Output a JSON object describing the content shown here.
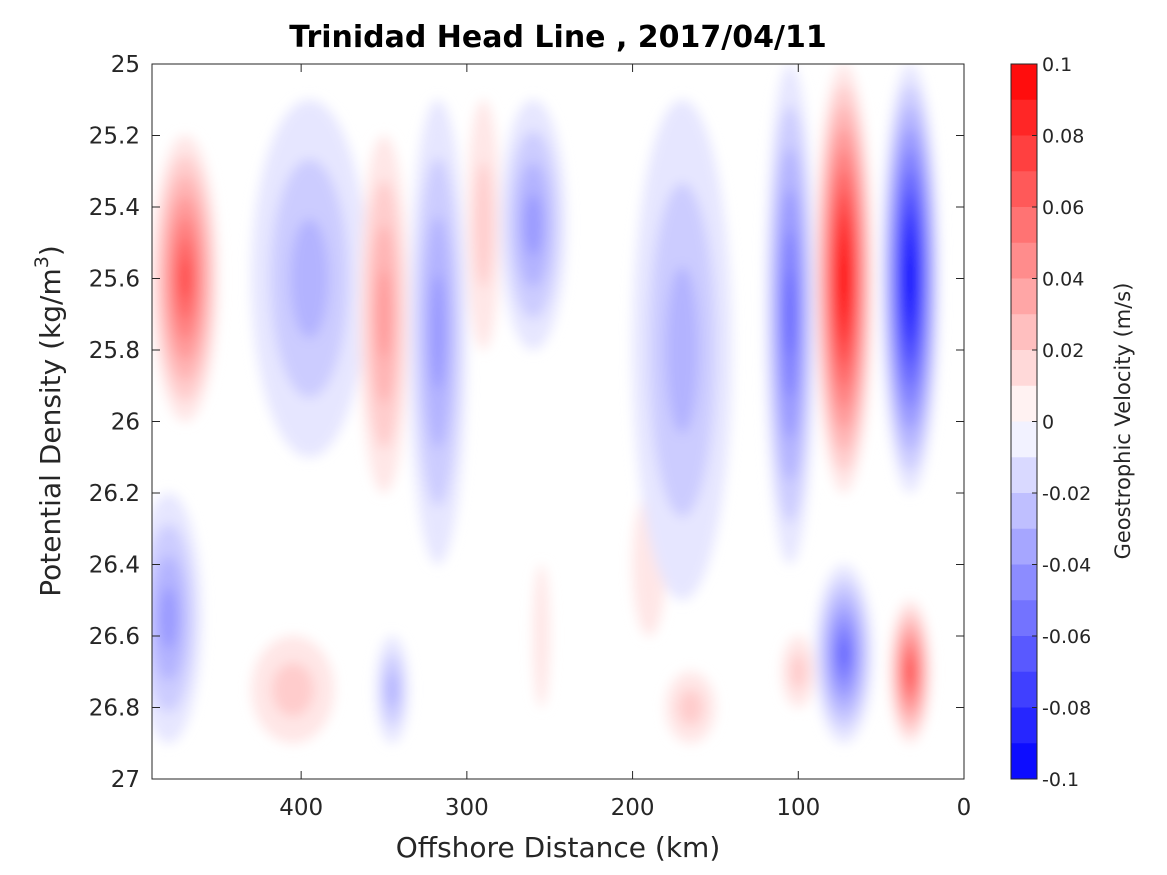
{
  "chart_data": {
    "type": "contour",
    "title": "Trinidad Head Line , 2017/04/11",
    "xlabel": "Offshore Distance (km)",
    "ylabel": "Potential Density (kg/m³)",
    "ylabel_parts": {
      "text": "Potential Density (kg/m",
      "sup": "3",
      "close": ")"
    },
    "xlim": [
      490,
      0
    ],
    "ylim": [
      25,
      27
    ],
    "x_reversed": true,
    "y_reversed": true,
    "xticks": [
      400,
      300,
      200,
      100,
      0
    ],
    "xtick_labels": [
      "400",
      "300",
      "200",
      "100",
      "0"
    ],
    "yticks": [
      25,
      25.2,
      25.4,
      25.6,
      25.8,
      26,
      26.2,
      26.4,
      26.6,
      26.8,
      27
    ],
    "ytick_labels": [
      "25",
      "25.2",
      "25.4",
      "25.6",
      "25.8",
      "26",
      "26.2",
      "26.4",
      "26.6",
      "26.8",
      "27"
    ],
    "colorbar": {
      "label": "Geostrophic Velocity (m/s)",
      "range": [
        -0.1,
        0.1
      ],
      "ticks": [
        0.1,
        0.08,
        0.06,
        0.04,
        0.02,
        0,
        -0.02,
        -0.04,
        -0.06,
        -0.08,
        -0.1
      ],
      "tick_labels": [
        "0.1",
        "0.08",
        "0.06",
        "0.04",
        "0.02",
        "0",
        "-0.02",
        "-0.04",
        "-0.06",
        "-0.08",
        "-0.1"
      ],
      "levels": 20,
      "colormap": "blue-white-red"
    },
    "features": [
      {
        "x": [
          490,
          450
        ],
        "y": [
          25.2,
          26.0
        ],
        "sign": 1,
        "peak": 0.07
      },
      {
        "x": [
          500,
          460
        ],
        "y": [
          26.2,
          26.9
        ],
        "sign": -1,
        "peak": 0.04
      },
      {
        "x": [
          430,
          360
        ],
        "y": [
          25.1,
          26.1
        ],
        "sign": -1,
        "peak": 0.03
      },
      {
        "x": [
          430,
          380
        ],
        "y": [
          26.6,
          26.9
        ],
        "sign": 1,
        "peak": 0.015
      },
      {
        "x": [
          365,
          335
        ],
        "y": [
          25.2,
          26.2
        ],
        "sign": 1,
        "peak": 0.035
      },
      {
        "x": [
          355,
          335
        ],
        "y": [
          26.6,
          26.9
        ],
        "sign": -1,
        "peak": 0.03
      },
      {
        "x": [
          335,
          300
        ],
        "y": [
          25.1,
          26.4
        ],
        "sign": -1,
        "peak": 0.035
      },
      {
        "x": [
          300,
          280
        ],
        "y": [
          25.1,
          25.8
        ],
        "sign": 1,
        "peak": 0.02
      },
      {
        "x": [
          280,
          240
        ],
        "y": [
          25.1,
          25.8
        ],
        "sign": -1,
        "peak": 0.035
      },
      {
        "x": [
          260,
          250
        ],
        "y": [
          26.4,
          26.8
        ],
        "sign": 1,
        "peak": 0.012
      },
      {
        "x": [
          200,
          180
        ],
        "y": [
          26.2,
          26.6
        ],
        "sign": 1,
        "peak": 0.012
      },
      {
        "x": [
          200,
          140
        ],
        "y": [
          25.1,
          26.5
        ],
        "sign": -1,
        "peak": 0.03
      },
      {
        "x": [
          180,
          150
        ],
        "y": [
          26.7,
          26.9
        ],
        "sign": 1,
        "peak": 0.015
      },
      {
        "x": [
          120,
          90
        ],
        "y": [
          25.0,
          26.4
        ],
        "sign": -1,
        "peak": 0.055
      },
      {
        "x": [
          110,
          90
        ],
        "y": [
          26.6,
          26.8
        ],
        "sign": 1,
        "peak": 0.015
      },
      {
        "x": [
          90,
          55
        ],
        "y": [
          25.0,
          26.2
        ],
        "sign": 1,
        "peak": 0.1
      },
      {
        "x": [
          90,
          55
        ],
        "y": [
          26.4,
          26.9
        ],
        "sign": -1,
        "peak": 0.06
      },
      {
        "x": [
          50,
          15
        ],
        "y": [
          25.0,
          26.2
        ],
        "sign": -1,
        "peak": 0.1
      },
      {
        "x": [
          45,
          20
        ],
        "y": [
          26.5,
          26.9
        ],
        "sign": 1,
        "peak": 0.07
      }
    ]
  }
}
